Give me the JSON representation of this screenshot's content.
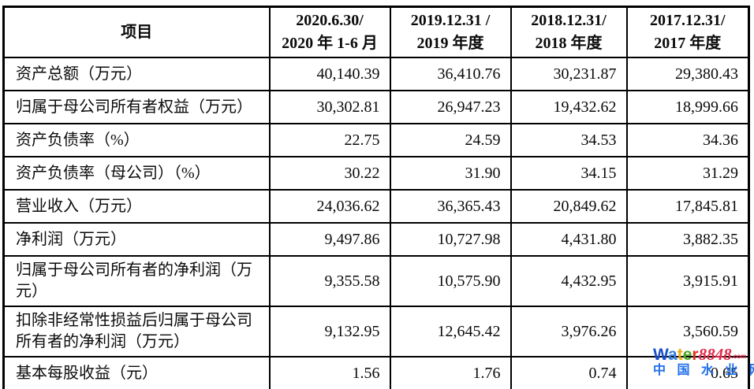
{
  "table": {
    "columns": [
      {
        "line1": "项目",
        "line2": ""
      },
      {
        "line1": "2020.6.30/",
        "line2": "2020 年 1-6 月"
      },
      {
        "line1": "2019.12.31 /",
        "line2": "2019 年度"
      },
      {
        "line1": "2018.12.31/",
        "line2": "2018 年度"
      },
      {
        "line1": "2017.12.31/",
        "line2": "2017 年度"
      }
    ],
    "rows": [
      {
        "label": "资产总额（万元）",
        "values": [
          "40,140.39",
          "36,410.76",
          "30,231.87",
          "29,380.43"
        ]
      },
      {
        "label": "归属于母公司所有者权益（万元）",
        "values": [
          "30,302.81",
          "26,947.23",
          "19,432.62",
          "18,999.66"
        ]
      },
      {
        "label": "资产负债率（%）",
        "values": [
          "22.75",
          "24.59",
          "34.53",
          "34.36"
        ]
      },
      {
        "label": "资产负债率（母公司）（%）",
        "values": [
          "30.22",
          "31.90",
          "34.15",
          "31.29"
        ]
      },
      {
        "label": "营业收入（万元）",
        "values": [
          "24,036.62",
          "36,365.43",
          "20,849.62",
          "17,845.81"
        ]
      },
      {
        "label": "净利润（万元）",
        "values": [
          "9,497.86",
          "10,727.98",
          "4,431.80",
          "3,882.35"
        ]
      },
      {
        "label": "归属于母公司所有者的净利润（万元）",
        "values": [
          "9,355.58",
          "10,575.90",
          "4,432.95",
          "3,915.91"
        ]
      },
      {
        "label": "扣除非经常性损益后归属于母公司所有者的净利润（万元）",
        "values": [
          "9,132.95",
          "12,645.42",
          "3,976.26",
          "3,560.59"
        ]
      },
      {
        "label": "基本每股收益（元）",
        "values": [
          "1.56",
          "1.76",
          "0.74",
          "0.65"
        ]
      }
    ]
  },
  "watermark": {
    "brand_letters": [
      {
        "char": "W",
        "color": "#1b50c8"
      },
      {
        "char": "a",
        "color": "#2e7ae0"
      },
      {
        "char": "t",
        "color": "#f0a80a"
      },
      {
        "char": "e",
        "color": "#4aa41e"
      },
      {
        "char": "r",
        "color": "#e0331e"
      }
    ],
    "brand_number": "8848",
    "brand_number_color": "#e02848",
    "brand_suffix": ".com",
    "brand_suffix_color": "#e02848",
    "subtitle": "中 国 水 业 网",
    "subtitle_color": "#1e6ee8"
  }
}
